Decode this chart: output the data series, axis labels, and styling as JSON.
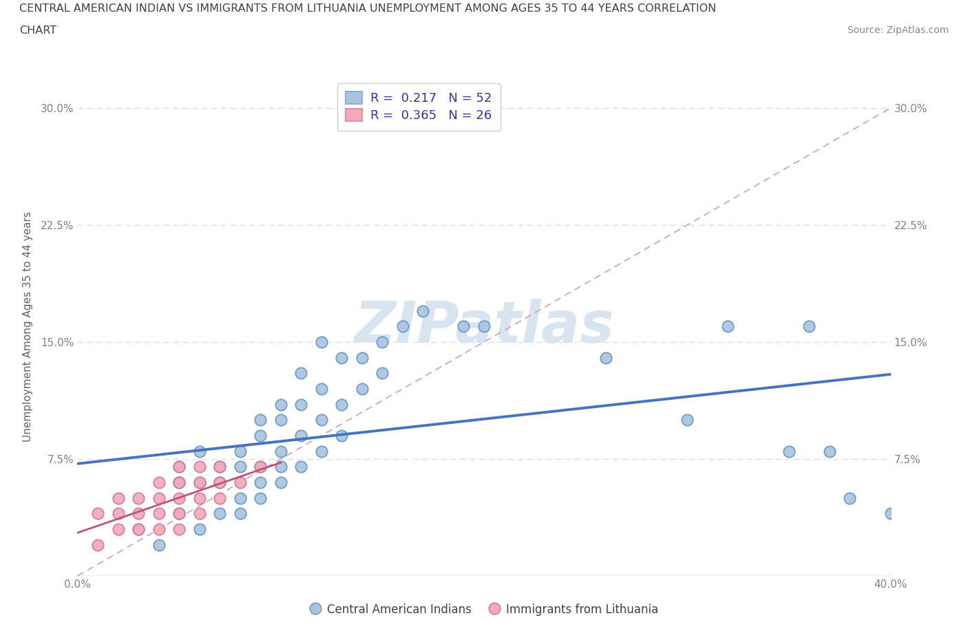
{
  "title_line1": "CENTRAL AMERICAN INDIAN VS IMMIGRANTS FROM LITHUANIA UNEMPLOYMENT AMONG AGES 35 TO 44 YEARS CORRELATION",
  "title_line2": "CHART",
  "source_text": "Source: ZipAtlas.com",
  "ylabel": "Unemployment Among Ages 35 to 44 years",
  "xlim": [
    0.0,
    0.4
  ],
  "ylim": [
    0.0,
    0.32
  ],
  "xticks": [
    0.0,
    0.1,
    0.2,
    0.3,
    0.4
  ],
  "xticklabels": [
    "0.0%",
    "",
    "",
    "",
    "40.0%"
  ],
  "yticks": [
    0.075,
    0.15,
    0.225,
    0.3
  ],
  "yticklabels": [
    "7.5%",
    "15.0%",
    "22.5%",
    "30.0%"
  ],
  "blue_color": "#a8c4e0",
  "blue_edge_color": "#6090c0",
  "pink_color": "#f4a8b8",
  "pink_edge_color": "#d07090",
  "blue_line_color": "#4472c4",
  "pink_line_color": "#c0507a",
  "ref_line_color": "#d0a0b0",
  "watermark_text": "ZIPatlas",
  "watermark_color": "#d8e4f0",
  "legend_blue_label": "R =  0.217   N = 52",
  "legend_pink_label": "R =  0.365   N = 26",
  "legend_text_color": "#3333aa",
  "blue_scatter_x": [
    0.03,
    0.04,
    0.05,
    0.05,
    0.05,
    0.06,
    0.06,
    0.06,
    0.07,
    0.07,
    0.07,
    0.08,
    0.08,
    0.08,
    0.08,
    0.09,
    0.09,
    0.09,
    0.09,
    0.09,
    0.1,
    0.1,
    0.1,
    0.1,
    0.1,
    0.11,
    0.11,
    0.11,
    0.11,
    0.12,
    0.12,
    0.12,
    0.12,
    0.13,
    0.13,
    0.13,
    0.14,
    0.14,
    0.15,
    0.15,
    0.16,
    0.17,
    0.19,
    0.2,
    0.26,
    0.3,
    0.32,
    0.35,
    0.36,
    0.37,
    0.38,
    0.4
  ],
  "blue_scatter_y": [
    0.03,
    0.02,
    0.04,
    0.06,
    0.07,
    0.03,
    0.06,
    0.08,
    0.04,
    0.06,
    0.07,
    0.04,
    0.05,
    0.07,
    0.08,
    0.05,
    0.06,
    0.07,
    0.09,
    0.1,
    0.06,
    0.07,
    0.08,
    0.1,
    0.11,
    0.07,
    0.09,
    0.11,
    0.13,
    0.08,
    0.1,
    0.12,
    0.15,
    0.09,
    0.11,
    0.14,
    0.12,
    0.14,
    0.13,
    0.15,
    0.16,
    0.17,
    0.16,
    0.16,
    0.14,
    0.1,
    0.16,
    0.08,
    0.16,
    0.08,
    0.05,
    0.04
  ],
  "pink_scatter_x": [
    0.01,
    0.01,
    0.02,
    0.02,
    0.02,
    0.03,
    0.03,
    0.03,
    0.04,
    0.04,
    0.04,
    0.04,
    0.05,
    0.05,
    0.05,
    0.05,
    0.05,
    0.06,
    0.06,
    0.06,
    0.06,
    0.07,
    0.07,
    0.07,
    0.08,
    0.09
  ],
  "pink_scatter_y": [
    0.02,
    0.04,
    0.03,
    0.04,
    0.05,
    0.03,
    0.04,
    0.05,
    0.03,
    0.04,
    0.05,
    0.06,
    0.03,
    0.04,
    0.05,
    0.06,
    0.07,
    0.04,
    0.05,
    0.06,
    0.07,
    0.05,
    0.06,
    0.07,
    0.06,
    0.07
  ],
  "background_color": "#ffffff",
  "grid_color": "#dddddd",
  "title_color": "#404040",
  "axis_label_color": "#606060",
  "tick_label_color": "#808080"
}
